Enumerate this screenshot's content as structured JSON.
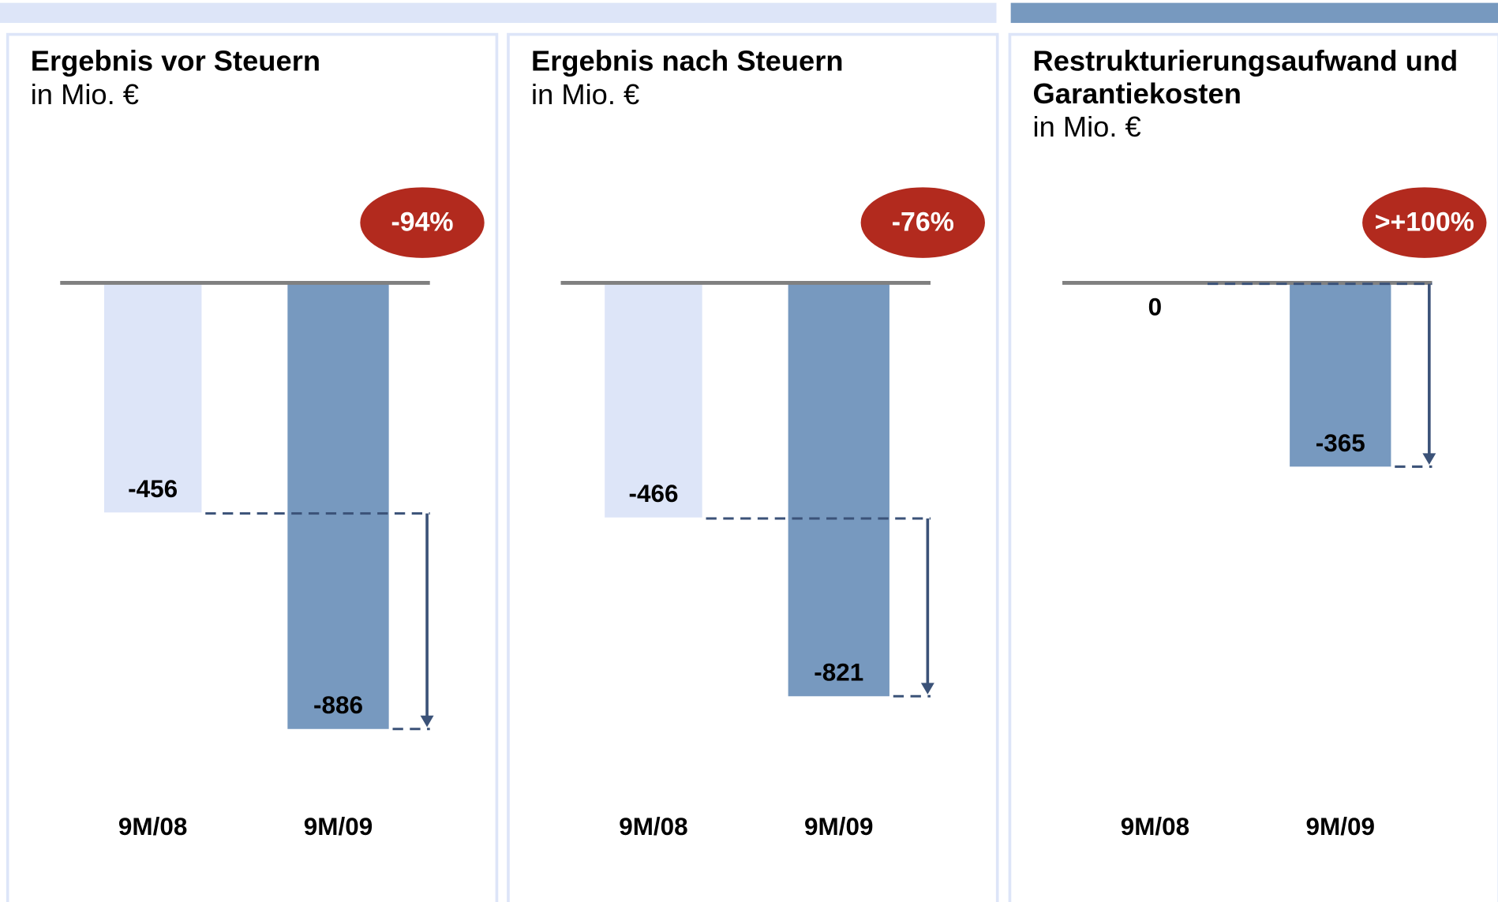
{
  "chart_data": [
    {
      "type": "bar",
      "title": "Ergebnis vor Steuern",
      "subtitle": "in Mio. €",
      "categories": [
        "9M/08",
        "9M/09"
      ],
      "values": [
        -456,
        -886
      ],
      "colors": [
        "#dde5f8",
        "#7799bf"
      ],
      "ylim": [
        -1000,
        0
      ],
      "annotation": "-94%"
    },
    {
      "type": "bar",
      "title": "Ergebnis nach Steuern",
      "subtitle": "in Mio. €",
      "categories": [
        "9M/08",
        "9M/09"
      ],
      "values": [
        -466,
        -821
      ],
      "colors": [
        "#dde5f8",
        "#7799bf"
      ],
      "ylim": [
        -1000,
        0
      ],
      "annotation": "-76%"
    },
    {
      "type": "bar",
      "title": "Restrukturierungsaufwand und Garantiekosten",
      "subtitle": "in Mio. €",
      "categories": [
        "9M/08",
        "9M/09"
      ],
      "values": [
        0,
        -365
      ],
      "colors": [
        "#dde5f8",
        "#7799bf"
      ],
      "ylim": [
        -1000,
        0
      ],
      "annotation": ">+100%"
    }
  ]
}
